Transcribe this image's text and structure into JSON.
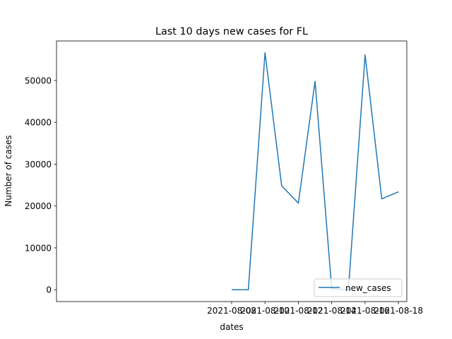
{
  "chart_data": {
    "type": "line",
    "title": "Last 10 days new cases for FL",
    "xlabel": "dates",
    "ylabel": "Number of cases",
    "x": [
      "2021-08-08",
      "2021-08-09",
      "2021-08-10",
      "2021-08-11",
      "2021-08-12",
      "2021-08-13",
      "2021-08-14",
      "2021-08-15",
      "2021-08-16",
      "2021-08-17",
      "2021-08-18"
    ],
    "series": [
      {
        "name": "new_cases",
        "color": "#1f77b4",
        "values": [
          0,
          0,
          56600,
          24800,
          20700,
          49800,
          200,
          0,
          56100,
          21700,
          23400
        ]
      }
    ],
    "xticks": [
      "2021-08-08",
      "2021-08-10",
      "2021-08-12",
      "2021-08-14",
      "2021-08-16",
      "2021-08-18"
    ],
    "yticks": [
      0,
      10000,
      20000,
      30000,
      40000,
      50000
    ],
    "ytick_labels": [
      "0",
      "10000",
      "20000",
      "30000",
      "40000",
      "50000"
    ],
    "xlim": [
      "2021-07-28 12:00",
      "2021-08-18 12:00"
    ],
    "ylim": [
      -2830,
      59430
    ],
    "grid": false,
    "legend_position": "lower-right"
  }
}
